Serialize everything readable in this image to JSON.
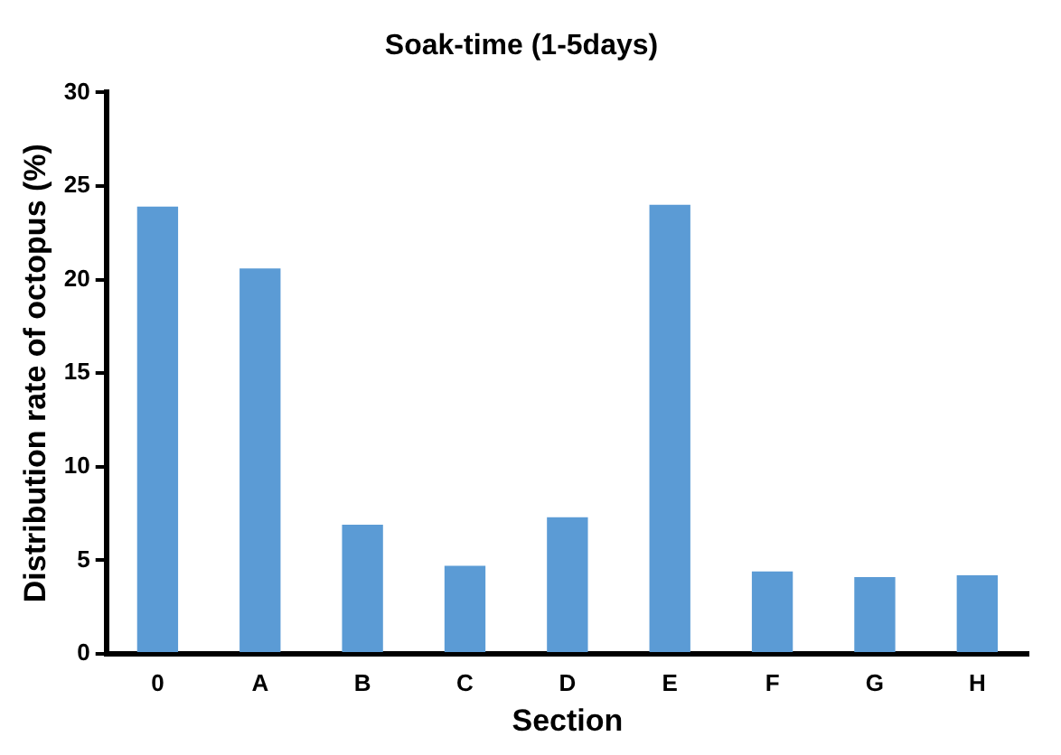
{
  "chart_data": {
    "type": "bar",
    "title": "Soak-time (1-5days)",
    "xlabel": "Section",
    "ylabel": "Distribution rate of octopus (%)",
    "categories": [
      "0",
      "A",
      "B",
      "C",
      "D",
      "E",
      "F",
      "G",
      "H"
    ],
    "values": [
      23.9,
      20.6,
      6.9,
      4.7,
      7.3,
      24.0,
      4.4,
      4.1,
      4.2
    ],
    "color": "#5b9bd5",
    "ylim": [
      0,
      30
    ],
    "yticks": [
      0,
      5,
      10,
      15,
      20,
      25,
      30
    ],
    "grid": false,
    "legend": false
  }
}
